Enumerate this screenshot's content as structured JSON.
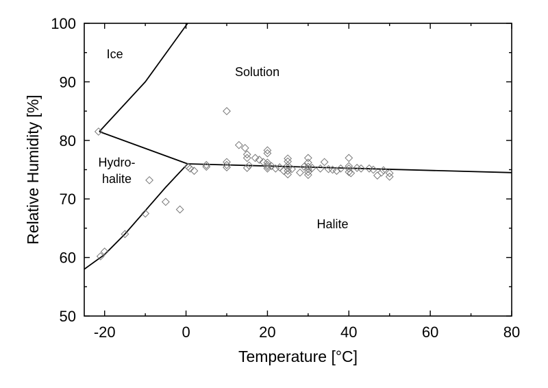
{
  "chart_data": {
    "type": "scatter",
    "xlabel": "Temperature [°C]",
    "ylabel": "Relative Humidity [%]",
    "xlim": [
      -25,
      80
    ],
    "ylim": [
      50,
      100
    ],
    "x_ticks": [
      -20,
      0,
      20,
      40,
      60,
      80
    ],
    "y_ticks": [
      50,
      60,
      70,
      80,
      90,
      100
    ],
    "x_minor_step": 10,
    "y_minor_step": 5,
    "grid": false,
    "legend": "none",
    "regions": [
      {
        "id": "ice",
        "label": "Ice",
        "x": -17.5,
        "y": 94
      },
      {
        "id": "solution",
        "label": "Solution",
        "x": 17.5,
        "y": 91
      },
      {
        "id": "hydrohalite",
        "label": "Hydro-",
        "label2": "halite",
        "x": -17,
        "y": 75.5
      },
      {
        "id": "halite",
        "label": "Halite",
        "x": 36,
        "y": 65
      }
    ],
    "boundary_lines": [
      {
        "name": "ice-solution",
        "points": [
          [
            -21.3,
            81.5
          ],
          [
            -10,
            90
          ],
          [
            0.4,
            100
          ]
        ]
      },
      {
        "name": "hydrohalite-solution",
        "points": [
          [
            -21.3,
            81.5
          ],
          [
            0.4,
            76
          ]
        ]
      },
      {
        "name": "halite-solution",
        "points": [
          [
            0.4,
            76
          ],
          [
            80,
            74.5
          ]
        ]
      },
      {
        "name": "halite-hydrohalite",
        "points": [
          [
            -25,
            58
          ],
          [
            -20,
            60.5
          ],
          [
            -15,
            64
          ],
          [
            -10,
            68
          ],
          [
            -5,
            72
          ],
          [
            0.4,
            76
          ]
        ]
      }
    ],
    "series": [
      {
        "marker": "diamond",
        "points": [
          [
            -21.5,
            81.5
          ],
          [
            -21,
            60.2
          ],
          [
            -20,
            61
          ],
          [
            -15,
            64
          ],
          [
            -10,
            67.5
          ],
          [
            -9,
            73.2
          ],
          [
            -5,
            69.5
          ],
          [
            -1.5,
            68.2
          ],
          [
            0.5,
            75.5
          ],
          [
            1,
            75.2
          ],
          [
            2,
            74.8
          ],
          [
            5,
            75.5
          ],
          [
            5,
            75.8
          ],
          [
            10,
            85
          ],
          [
            10,
            76.3
          ],
          [
            10,
            75.8
          ],
          [
            10,
            75.4
          ],
          [
            13,
            79.2
          ],
          [
            14.5,
            78.7
          ],
          [
            15,
            77.6
          ],
          [
            15,
            77
          ],
          [
            15.5,
            75.7
          ],
          [
            15,
            75.3
          ],
          [
            17,
            77
          ],
          [
            18,
            76.7
          ],
          [
            19,
            76.3
          ],
          [
            20,
            78.3
          ],
          [
            20,
            77.8
          ],
          [
            20,
            76.2
          ],
          [
            20,
            75.8
          ],
          [
            20,
            75.5
          ],
          [
            20,
            75.2
          ],
          [
            21,
            75.6
          ],
          [
            22,
            75.2
          ],
          [
            23,
            75.4
          ],
          [
            24,
            74.8
          ],
          [
            25,
            76.9
          ],
          [
            25,
            76.4
          ],
          [
            25,
            75.7
          ],
          [
            25,
            75.3
          ],
          [
            25,
            74.8
          ],
          [
            25,
            74.2
          ],
          [
            26,
            75.1
          ],
          [
            28,
            74.5
          ],
          [
            29,
            75.5
          ],
          [
            30,
            77
          ],
          [
            30,
            76.2
          ],
          [
            30,
            75.5
          ],
          [
            30,
            75.1
          ],
          [
            30,
            74.6
          ],
          [
            30,
            74.1
          ],
          [
            31,
            75.3
          ],
          [
            33,
            75.2
          ],
          [
            34,
            76.3
          ],
          [
            35,
            75.1
          ],
          [
            36,
            75
          ],
          [
            37,
            74.8
          ],
          [
            38,
            75.2
          ],
          [
            40,
            77
          ],
          [
            40,
            75.6
          ],
          [
            40,
            75.2
          ],
          [
            40,
            74.6
          ],
          [
            40.5,
            74.4
          ],
          [
            42,
            75.3
          ],
          [
            43,
            75.2
          ],
          [
            45,
            75.2
          ],
          [
            46,
            75
          ],
          [
            47,
            74
          ],
          [
            48,
            74.5
          ],
          [
            48.5,
            74.9
          ],
          [
            50,
            74.4
          ],
          [
            50,
            73.8
          ]
        ]
      }
    ]
  }
}
